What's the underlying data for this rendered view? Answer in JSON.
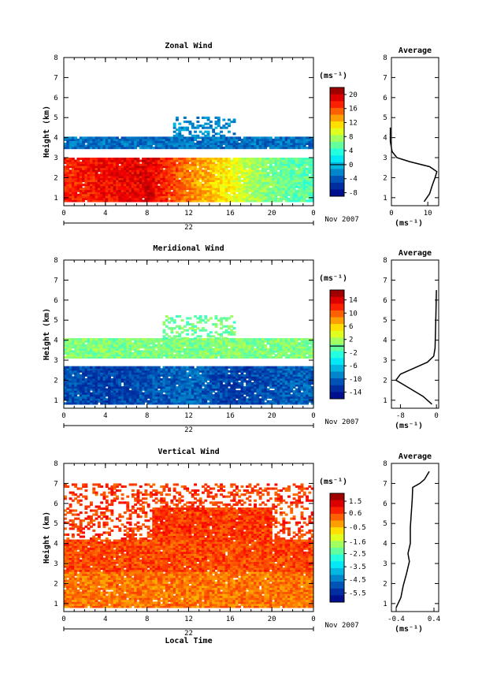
{
  "chart_data": [
    {
      "type": "heatmap",
      "title": "Zonal Wind",
      "ylabel": "Height (km)",
      "x_ticks": [
        "0",
        "4",
        "8",
        "12",
        "16",
        "20",
        "0"
      ],
      "date_day": "22",
      "date_label": "Nov 2007",
      "xlim": [
        0,
        24
      ],
      "ylim": [
        0.6,
        8
      ],
      "y_ticks": [
        "1",
        "2",
        "3",
        "4",
        "5",
        "6",
        "7",
        "8"
      ],
      "colorbar": {
        "unit": "(ms⁻¹)",
        "min": -9,
        "max": 22,
        "ticks": [
          "20",
          "16",
          "12",
          "8",
          "4",
          "0",
          "-4",
          "-8"
        ],
        "marker": 0
      },
      "layers": [
        {
          "y": [
            0.8,
            3.0
          ],
          "gap": [],
          "value_at": {
            "x": [
              0,
              4,
              8,
              12,
              16,
              20,
              24
            ],
            "v": [
              17,
              18,
              19,
              14,
              10,
              6,
              5
            ]
          }
        },
        {
          "y": [
            3.0,
            3.45
          ],
          "blank": true
        },
        {
          "y": [
            3.45,
            4.05
          ],
          "gap": [],
          "value": -3
        },
        {
          "y": [
            4.05,
            5.05
          ],
          "x": [
            10.5,
            16.5
          ],
          "sparse": true,
          "value": -2
        }
      ],
      "average_profile": {
        "title": "Average",
        "xlabel": "(ms⁻¹)",
        "xlim": [
          0,
          13
        ],
        "x_ticks": [
          "0",
          "10"
        ],
        "points": [
          [
            9,
            0.8
          ],
          [
            10.5,
            1.2
          ],
          [
            11.2,
            1.6
          ],
          [
            12,
            2.0
          ],
          [
            12.5,
            2.3
          ],
          [
            10.5,
            2.55
          ],
          [
            5,
            2.8
          ],
          [
            1.5,
            3.0
          ],
          [
            0.2,
            3.3
          ],
          [
            -0.3,
            3.8
          ],
          [
            -0.3,
            4.5
          ]
        ]
      }
    },
    {
      "type": "heatmap",
      "title": "Meridional Wind",
      "ylabel": "Height (km)",
      "x_ticks": [
        "0",
        "4",
        "8",
        "12",
        "16",
        "20",
        "0"
      ],
      "date_day": "22",
      "date_label": "Nov 2007",
      "xlim": [
        0,
        24
      ],
      "ylim": [
        0.6,
        8
      ],
      "y_ticks": [
        "1",
        "2",
        "3",
        "4",
        "5",
        "6",
        "7",
        "8"
      ],
      "colorbar": {
        "unit": "(ms⁻¹)",
        "min": -16,
        "max": 17,
        "ticks": [
          "14",
          "10",
          "6",
          "2",
          "-2",
          "-6",
          "-10",
          "-14"
        ],
        "marker": 0
      },
      "layers": [
        {
          "y": [
            0.8,
            2.65
          ],
          "value_at": {
            "x": [
              0,
              4,
              8,
              12,
              16,
              20,
              24
            ],
            "v": [
              -11,
              -12,
              -11,
              -10,
              -12,
              -11,
              -10
            ]
          }
        },
        {
          "y": [
            2.65,
            3.1
          ],
          "blank": true
        },
        {
          "y": [
            3.1,
            4.05
          ],
          "value": 0.5
        },
        {
          "y": [
            4.05,
            5.2
          ],
          "x": [
            9.5,
            16.5
          ],
          "sparse": true,
          "value": 0
        }
      ],
      "average_profile": {
        "title": "Average",
        "xlabel": "(ms⁻¹)",
        "xlim": [
          -10,
          0.5
        ],
        "x_ticks": [
          "-8",
          "0"
        ],
        "points": [
          [
            -1,
            0.8
          ],
          [
            -3,
            1.2
          ],
          [
            -6,
            1.6
          ],
          [
            -9,
            2.0
          ],
          [
            -8,
            2.3
          ],
          [
            -5,
            2.6
          ],
          [
            -2,
            2.9
          ],
          [
            -0.6,
            3.2
          ],
          [
            -0.3,
            3.6
          ],
          [
            -0.2,
            4.5
          ],
          [
            -0.1,
            5.5
          ],
          [
            0,
            6.5
          ]
        ]
      }
    },
    {
      "type": "heatmap",
      "title": "Vertical Wind",
      "ylabel": "Height (km)",
      "xlabel": "Local Time",
      "x_ticks": [
        "0",
        "4",
        "8",
        "12",
        "16",
        "20",
        "0"
      ],
      "date_day": "22",
      "date_label": "Nov 2007",
      "xlim": [
        0,
        24
      ],
      "ylim": [
        0.6,
        8
      ],
      "y_ticks": [
        "1",
        "2",
        "3",
        "4",
        "5",
        "6",
        "7",
        "8"
      ],
      "colorbar": {
        "unit": "(ms⁻¹)",
        "min": -6.2,
        "max": 2.1,
        "ticks": [
          "1.5",
          "0.6",
          "-0.5",
          "-1.6",
          "-2.5",
          "-3.5",
          "-4.5",
          "-5.5"
        ],
        "marker": null
      },
      "layers": [
        {
          "y": [
            0.8,
            2.6
          ],
          "value": 0.1
        },
        {
          "y": [
            2.6,
            4.2
          ],
          "value": 0.5
        },
        {
          "y": [
            4.2,
            5.8
          ],
          "x": [
            8.5,
            20
          ],
          "value": 0.6
        },
        {
          "y": [
            4.2,
            7.0
          ],
          "sparse": true,
          "value": 0.6
        }
      ],
      "average_profile": {
        "title": "Average",
        "xlabel": "(ms⁻¹)",
        "xlim": [
          -0.5,
          0.5
        ],
        "x_ticks": [
          "-0.4",
          "0.4"
        ],
        "points": [
          [
            -0.4,
            0.8
          ],
          [
            -0.3,
            1.3
          ],
          [
            -0.25,
            1.9
          ],
          [
            -0.18,
            2.5
          ],
          [
            -0.12,
            3.1
          ],
          [
            -0.15,
            3.5
          ],
          [
            -0.1,
            4.0
          ],
          [
            -0.1,
            4.8
          ],
          [
            -0.08,
            5.5
          ],
          [
            -0.06,
            6.2
          ],
          [
            -0.05,
            6.8
          ],
          [
            0.1,
            7.0
          ],
          [
            0.2,
            7.2
          ],
          [
            0.3,
            7.6
          ]
        ]
      }
    }
  ]
}
